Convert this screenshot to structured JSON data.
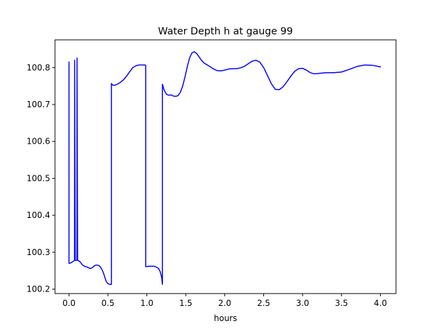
{
  "chart_data": {
    "type": "line",
    "title": "Water Depth h at gauge 99",
    "xlabel": "hours",
    "ylabel": "",
    "xlim": [
      -0.18,
      4.2
    ],
    "ylim": [
      100.188,
      100.875
    ],
    "xticks": [
      0.0,
      0.5,
      1.0,
      1.5,
      2.0,
      2.5,
      3.0,
      3.5,
      4.0
    ],
    "xtick_labels": [
      "0.0",
      "0.5",
      "1.0",
      "1.5",
      "2.0",
      "2.5",
      "3.0",
      "3.5",
      "4.0"
    ],
    "yticks": [
      100.2,
      100.3,
      100.4,
      100.5,
      100.6,
      100.7,
      100.8
    ],
    "ytick_labels": [
      "100.2",
      "100.3",
      "100.4",
      "100.5",
      "100.6",
      "100.7",
      "100.8"
    ],
    "grid": false,
    "legend": "none",
    "series": [
      {
        "color": "#0000ff",
        "x": [
          0.0,
          0.0,
          0.01,
          0.03,
          0.06,
          0.071,
          0.072,
          0.08,
          0.09,
          0.102,
          0.103,
          0.11,
          0.12,
          0.13,
          0.15,
          0.17,
          0.19,
          0.21,
          0.23,
          0.25,
          0.27,
          0.29,
          0.31,
          0.33,
          0.35,
          0.37,
          0.39,
          0.41,
          0.43,
          0.45,
          0.46,
          0.48,
          0.5,
          0.52,
          0.54,
          0.545,
          0.545,
          0.55,
          0.56,
          0.58,
          0.6,
          0.63,
          0.66,
          0.7,
          0.74,
          0.78,
          0.82,
          0.86,
          0.9,
          0.94,
          0.98,
          0.985,
          0.985,
          1.0,
          1.03,
          1.06,
          1.09,
          1.12,
          1.15,
          1.17,
          1.19,
          1.2,
          1.2,
          1.22,
          1.25,
          1.28,
          1.31,
          1.34,
          1.37,
          1.4,
          1.43,
          1.46,
          1.49,
          1.52,
          1.55,
          1.58,
          1.61,
          1.64,
          1.67,
          1.7,
          1.73,
          1.76,
          1.8,
          1.85,
          1.9,
          1.95,
          2.0,
          2.05,
          2.1,
          2.15,
          2.2,
          2.25,
          2.3,
          2.35,
          2.4,
          2.45,
          2.5,
          2.55,
          2.6,
          2.65,
          2.7,
          2.75,
          2.8,
          2.85,
          2.9,
          2.95,
          3.0,
          3.05,
          3.1,
          3.15,
          3.2,
          3.3,
          3.4,
          3.5,
          3.6,
          3.7,
          3.8,
          3.9,
          4.0
        ],
        "values": [
          100.815,
          100.27,
          100.27,
          100.272,
          100.276,
          100.278,
          100.82,
          100.278,
          100.278,
          100.278,
          100.826,
          100.278,
          100.277,
          100.276,
          100.272,
          100.266,
          100.263,
          100.261,
          100.26,
          100.258,
          100.256,
          100.257,
          100.26,
          100.264,
          100.265,
          100.265,
          100.263,
          100.258,
          100.25,
          100.239,
          100.232,
          100.22,
          100.215,
          100.213,
          100.213,
          100.213,
          100.757,
          100.755,
          100.753,
          100.752,
          100.753,
          100.756,
          100.76,
          100.767,
          100.777,
          100.789,
          100.8,
          100.805,
          100.807,
          100.807,
          100.807,
          100.806,
          100.261,
          100.261,
          100.262,
          100.262,
          100.262,
          100.26,
          100.256,
          100.248,
          100.232,
          100.213,
          100.755,
          100.74,
          100.728,
          100.725,
          100.726,
          100.723,
          100.722,
          100.724,
          100.733,
          100.75,
          100.775,
          100.803,
          100.827,
          100.84,
          100.843,
          100.838,
          100.829,
          100.82,
          100.813,
          100.809,
          100.804,
          100.797,
          100.792,
          100.791,
          100.793,
          100.796,
          100.797,
          100.797,
          100.799,
          100.803,
          100.81,
          100.817,
          100.82,
          100.815,
          100.8,
          100.778,
          100.756,
          100.741,
          100.74,
          100.748,
          100.762,
          100.777,
          100.79,
          100.797,
          100.798,
          100.793,
          100.786,
          100.783,
          100.784,
          100.786,
          100.786,
          100.788,
          100.795,
          100.803,
          100.807,
          100.806,
          100.802
        ]
      }
    ]
  }
}
